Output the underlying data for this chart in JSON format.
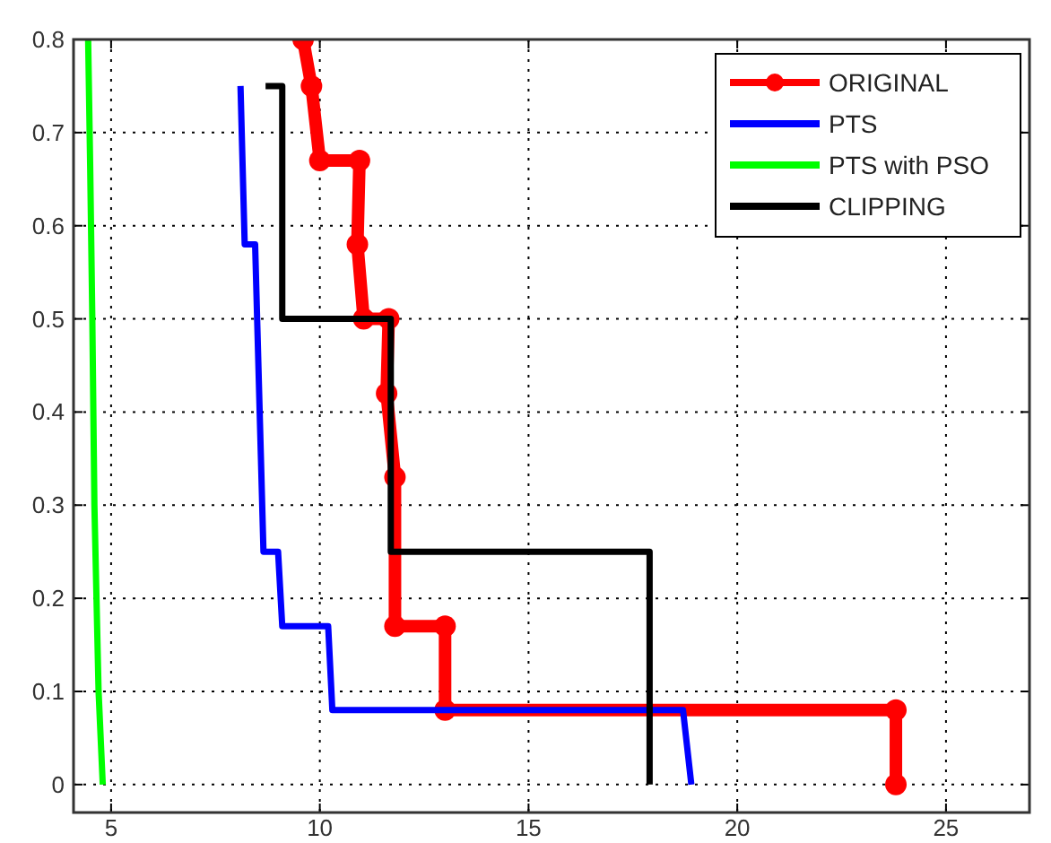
{
  "chart_data": {
    "type": "line",
    "xlim": [
      4.1,
      27
    ],
    "ylim": [
      -0.03,
      0.8
    ],
    "xticks": [
      5,
      10,
      15,
      20,
      25
    ],
    "yticks": [
      0,
      0.1,
      0.2,
      0.3,
      0.4,
      0.5,
      0.6,
      0.7,
      0.8
    ],
    "grid": true,
    "legend": "top right",
    "line_style": "solid",
    "series": [
      {
        "name": "ORIGINAL",
        "color": "#ff0000",
        "marker": "circle",
        "x": [
          9.6,
          9.8,
          10.0,
          10.95,
          10.9,
          11.05,
          11.65,
          11.6,
          11.8,
          11.8,
          13.0,
          13.0,
          23.8,
          23.8
        ],
        "values": [
          0.8,
          0.75,
          0.67,
          0.67,
          0.58,
          0.5,
          0.5,
          0.42,
          0.33,
          0.17,
          0.17,
          0.08,
          0.08,
          0
        ]
      },
      {
        "name": "PTS",
        "color": "#0000ff",
        "marker": "none",
        "x": [
          8.1,
          8.2,
          8.45,
          8.65,
          9.0,
          9.1,
          10.2,
          10.3,
          18.7,
          18.9
        ],
        "values": [
          0.75,
          0.58,
          0.58,
          0.25,
          0.25,
          0.17,
          0.17,
          0.08,
          0.08,
          0
        ]
      },
      {
        "name": "PTS with PSO",
        "color": "#00ff00",
        "marker": "none",
        "x": [
          4.45,
          4.5,
          4.55,
          4.6,
          4.65,
          4.7,
          4.8
        ],
        "values": [
          0.8,
          0.66,
          0.5,
          0.3,
          0.2,
          0.1,
          0
        ]
      },
      {
        "name": "CLIPPING",
        "color": "#000000",
        "marker": "none",
        "x": [
          8.7,
          9.1,
          9.1,
          11.7,
          11.7,
          17.9,
          17.9
        ],
        "values": [
          0.75,
          0.75,
          0.5,
          0.5,
          0.25,
          0.25,
          0
        ]
      }
    ]
  }
}
